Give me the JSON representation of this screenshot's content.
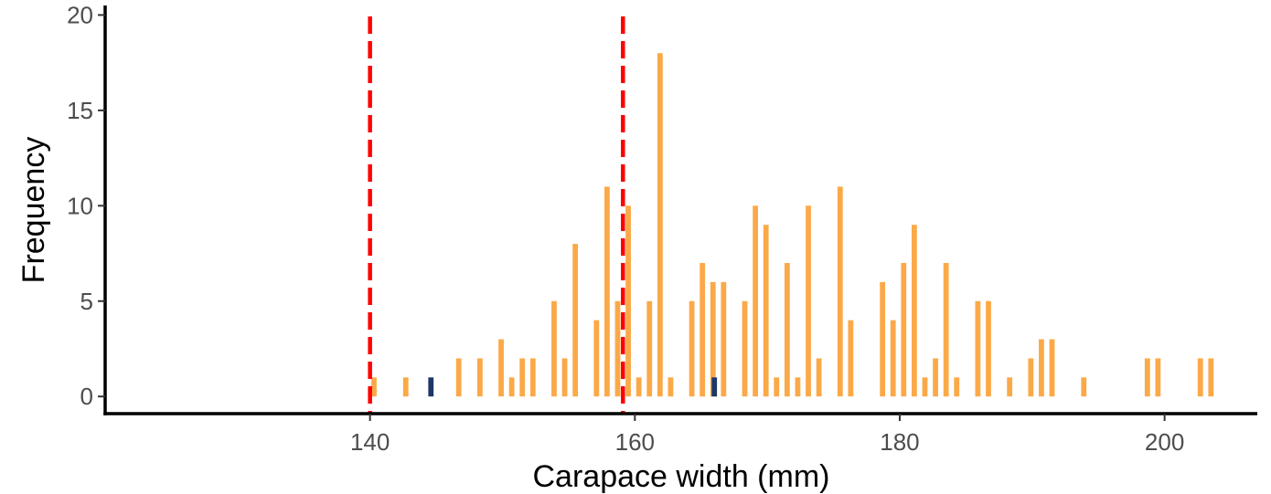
{
  "chart_data": {
    "type": "bar",
    "xlabel": "Carapace width (mm)",
    "ylabel": "Frequency",
    "xlim": [
      120,
      207
    ],
    "ylim": [
      -0.9,
      20.5
    ],
    "x_ticks": [
      140,
      160,
      180,
      200
    ],
    "x_tick_labels": [
      "140",
      "160",
      "180",
      "200"
    ],
    "y_ticks": [
      0,
      5,
      10,
      15,
      20
    ],
    "y_tick_labels": [
      "0",
      "5",
      "10",
      "15",
      "20"
    ],
    "bar_width": 0.4,
    "grid": false,
    "legend": "none",
    "series": [
      {
        "color": "#FBA948",
        "points": [
          [
            140.3,
            1
          ],
          [
            142.7,
            1
          ],
          [
            146.7,
            2
          ],
          [
            148.3,
            2
          ],
          [
            149.9,
            3
          ],
          [
            150.7,
            1
          ],
          [
            151.5,
            2
          ],
          [
            152.3,
            2
          ],
          [
            153.9,
            5
          ],
          [
            154.7,
            2
          ],
          [
            155.5,
            8
          ],
          [
            157.1,
            4
          ],
          [
            157.9,
            11
          ],
          [
            158.7,
            5
          ],
          [
            159.5,
            10
          ],
          [
            160.3,
            1
          ],
          [
            161.1,
            5
          ],
          [
            161.9,
            18
          ],
          [
            162.7,
            1
          ],
          [
            164.3,
            5
          ],
          [
            165.1,
            7
          ],
          [
            165.9,
            6
          ],
          [
            166.7,
            6
          ],
          [
            168.3,
            5
          ],
          [
            169.1,
            10
          ],
          [
            169.9,
            9
          ],
          [
            170.7,
            1
          ],
          [
            171.5,
            7
          ],
          [
            172.3,
            1
          ],
          [
            173.1,
            10
          ],
          [
            173.9,
            2
          ],
          [
            175.5,
            11
          ],
          [
            176.3,
            4
          ],
          [
            178.7,
            6
          ],
          [
            179.5,
            4
          ],
          [
            180.3,
            7
          ],
          [
            181.1,
            9
          ],
          [
            181.9,
            1
          ],
          [
            182.7,
            2
          ],
          [
            183.5,
            7
          ],
          [
            184.3,
            1
          ],
          [
            185.9,
            5
          ],
          [
            186.7,
            5
          ],
          [
            188.3,
            1
          ],
          [
            189.9,
            2
          ],
          [
            190.7,
            3
          ],
          [
            191.5,
            3
          ],
          [
            193.9,
            1
          ],
          [
            198.7,
            2
          ],
          [
            199.5,
            2
          ],
          [
            202.7,
            2
          ],
          [
            203.5,
            2
          ]
        ]
      },
      {
        "color": "#1C3768",
        "points": [
          [
            144.6,
            1
          ],
          [
            166.0,
            1
          ]
        ]
      }
    ],
    "reference_lines": [
      {
        "x": 140.0,
        "color": "#FF0000",
        "style": "dashed"
      },
      {
        "x": 159.1,
        "color": "#FF0000",
        "style": "dashed"
      }
    ]
  }
}
